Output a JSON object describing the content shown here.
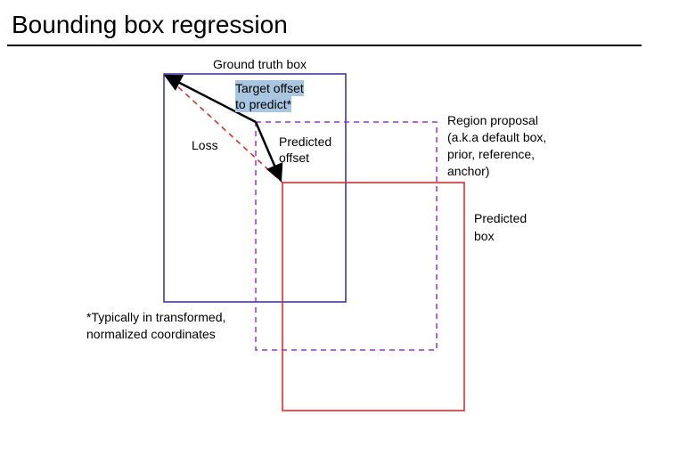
{
  "title": "Bounding box regression",
  "labels": {
    "ground_truth": "Ground truth box",
    "target_offset_line1": "Target offset",
    "target_offset_line2": "to predict*",
    "loss": "Loss",
    "predicted_offset_line1": "Predicted",
    "predicted_offset_line2": "offset",
    "region_proposal_line1": "Region proposal",
    "region_proposal_line2": "(a.k.a default box,",
    "region_proposal_line3": "prior, reference,",
    "region_proposal_line4": "anchor)",
    "predicted_box_line1": "Predicted",
    "predicted_box_line2": "box",
    "footnote_line1": "*Typically in transformed,",
    "footnote_line2": "normalized coordinates"
  },
  "colors": {
    "ground_truth_box": "#2b2bb3",
    "region_proposal_box": "#9b30d9",
    "predicted_box": "#e02020",
    "loss_line": "#e02020",
    "offset_arrows": "#000000",
    "target_highlight": "#a9c6e0"
  }
}
